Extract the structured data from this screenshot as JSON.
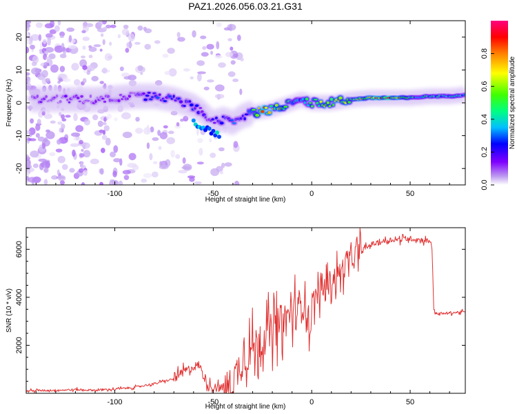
{
  "title": "PAZ1.2026.056.03.21.G31",
  "chart_data": [
    {
      "type": "heatmap",
      "xlabel": "Height of straight line (km)",
      "ylabel": "Frequency (Hz)",
      "xlim": [
        -145,
        78
      ],
      "ylim": [
        -25,
        25
      ],
      "xticks": [
        -100,
        -50,
        0,
        50
      ],
      "yticks": [
        -20,
        -10,
        0,
        10,
        20
      ],
      "colorbar": {
        "label": "Normalized spectral amplitude",
        "range": [
          0,
          1
        ],
        "ticks": [
          "0.0",
          "0.2",
          "0.4",
          "0.6",
          "0.8"
        ],
        "colormap": [
          "#ffffff",
          "#c0a0f0",
          "#8000ff",
          "#0000ff",
          "#00c0ff",
          "#00ff80",
          "#40ff00",
          "#ffff00",
          "#ff8000",
          "#ff0000",
          "#ff0080"
        ]
      },
      "ridge_frequency_hz": {
        "x": [
          -130,
          -120,
          -110,
          -100,
          -90,
          -80,
          -70,
          -60,
          -55,
          -50,
          -45,
          -40,
          -35,
          -30,
          -25,
          -20,
          -15,
          -10,
          -5,
          0,
          10,
          20,
          30,
          40,
          50,
          60,
          70,
          78
        ],
        "y": [
          1,
          1,
          1,
          1.5,
          2,
          2,
          1,
          -1,
          -3,
          -6,
          -5,
          -6,
          -4,
          -3,
          -2.5,
          -2,
          -1,
          0,
          1,
          0,
          0,
          1,
          1.5,
          1.5,
          1.5,
          2,
          2,
          2.5
        ]
      },
      "ridge_amplitude": {
        "x": [
          -130,
          -120,
          -110,
          -100,
          -90,
          -80,
          -70,
          -60,
          -55,
          -50,
          -45,
          -40,
          -35,
          -30,
          -25,
          -20,
          -15,
          -10,
          -5,
          0,
          10,
          20,
          30,
          40,
          50,
          60,
          70,
          78
        ],
        "y": [
          0.2,
          0.2,
          0.2,
          0.2,
          0.2,
          0.35,
          0.3,
          0.3,
          0.25,
          0.25,
          0.3,
          0.35,
          0.3,
          0.55,
          0.8,
          0.7,
          0.6,
          0.5,
          0.4,
          0.7,
          0.7,
          0.6,
          0.9,
          0.85,
          0.55,
          0.5,
          0.45,
          0.45
        ]
      }
    },
    {
      "type": "line",
      "xlabel": "Height of straight line (km)",
      "ylabel": "SNR (10 * v/v)",
      "xlim": [
        -145,
        78
      ],
      "ylim": [
        0,
        6900
      ],
      "xticks": [
        -100,
        -50,
        0,
        50
      ],
      "yticks": [
        2000,
        4000,
        6000
      ],
      "series": [
        {
          "color": "#e03030",
          "x": [
            -145,
            -130,
            -120,
            -110,
            -100,
            -90,
            -80,
            -70,
            -65,
            -60,
            -57,
            -55,
            -52,
            -50,
            -45,
            -42,
            -40,
            -38,
            -35,
            -30,
            -25,
            -20,
            -15,
            -10,
            -5,
            -3,
            -1,
            0,
            5,
            10,
            15,
            20,
            25,
            30,
            35,
            40,
            45,
            50,
            55,
            60,
            61,
            62,
            63,
            65,
            70,
            78
          ],
          "y": [
            100,
            130,
            150,
            130,
            170,
            250,
            400,
            600,
            900,
            1100,
            1200,
            700,
            300,
            250,
            200,
            250,
            300,
            900,
            1400,
            1900,
            2300,
            2600,
            3000,
            3300,
            3700,
            4000,
            2500,
            3800,
            4300,
            4700,
            5100,
            5600,
            5900,
            6200,
            6300,
            6400,
            6400,
            6450,
            6400,
            6350,
            6300,
            3500,
            3350,
            3300,
            3350,
            3400
          ]
        }
      ]
    }
  ]
}
